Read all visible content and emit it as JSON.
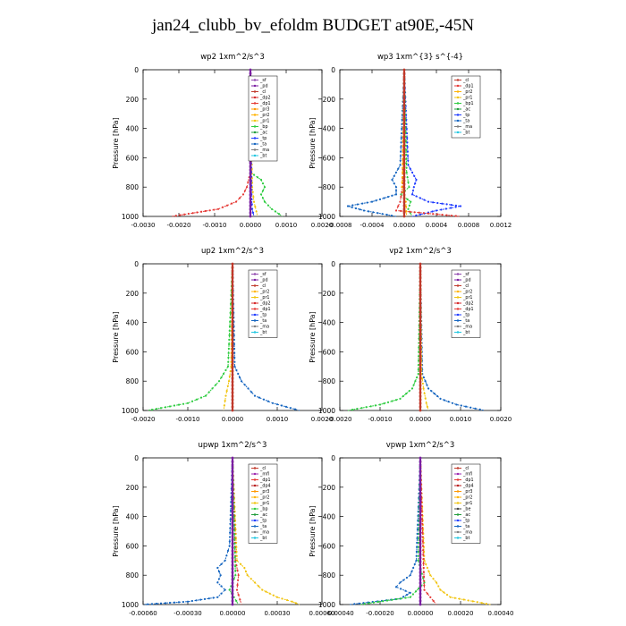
{
  "title": "jan24_clubb_bv_efoldm  BUDGET at90E,-45N",
  "colors": {
    "sf": "#8e44ad",
    "pd": "#7b1fa2",
    "cl": "#c0392b",
    "dp2": "#d62728",
    "dp1": "#e53935",
    "pr3": "#ff9800",
    "pr2": "#ffb300",
    "pr1": "#f1c40f",
    "bp": "#2ecc40",
    "ac": "#1f9c3a",
    "tp": "#1f3bff",
    "ta": "#1565c0",
    "ma": "#7f7f7f",
    "bt": "#20c6e0",
    "mfl": "#9c27b0",
    "dp4": "#b71c1c"
  },
  "chart_data": [
    {
      "type": "line",
      "title": "wp2   1xm^2/s^3",
      "ylabel": "Pressure  [hPa]",
      "xlim": [
        -0.003,
        0.002
      ],
      "ylim": [
        1000,
        0
      ],
      "xticks": [
        "-0.0030",
        "-0.0020",
        "-0.0010",
        "0.0000",
        "0.0010",
        "0.0020"
      ],
      "yticks": [
        "0",
        "200",
        "400",
        "600",
        "800",
        "1000"
      ],
      "legend": [
        "_sf",
        "_pd",
        "_cl",
        "_dp2",
        "_dp1",
        "_pr3",
        "_pr2",
        "_pr1",
        "_bp",
        "_ac",
        "_tp",
        "_ta",
        "_ma",
        "_bt"
      ],
      "series": [
        {
          "name": "_dp1",
          "color": "dp1",
          "p": [
            0,
            700,
            800,
            850,
            900,
            950,
            1000
          ],
          "x": [
            0,
            0,
            -0.0001,
            -0.0002,
            -0.0004,
            -0.0009,
            -0.0022
          ]
        },
        {
          "name": "_bp",
          "color": "bp",
          "p": [
            0,
            700,
            750,
            800,
            850,
            900,
            950,
            1000
          ],
          "x": [
            0,
            0,
            0.0003,
            0.0004,
            0.0003,
            0.0004,
            0.0006,
            0.0009
          ]
        },
        {
          "name": "_pr1",
          "color": "pr1",
          "p": [
            0,
            800,
            900,
            1000
          ],
          "x": [
            0,
            5e-05,
            0.0001,
            0.0002
          ]
        },
        {
          "name": "_tp",
          "color": "tp",
          "p": [
            0,
            850,
            950,
            1000
          ],
          "x": [
            0,
            3e-05,
            5e-05,
            0.0001
          ]
        },
        {
          "name": "_pd",
          "color": "pd",
          "p": [
            0,
            1000
          ],
          "x": [
            0,
            0
          ]
        }
      ]
    },
    {
      "type": "line",
      "title": "wp3   1xm^{3} s^{-4}",
      "ylabel": "Pressure  [hPa]",
      "xlim": [
        -0.0008,
        0.0012
      ],
      "ylim": [
        1000,
        0
      ],
      "xticks": [
        "-0.0008",
        "-0.0004",
        "0.0000",
        "0.0004",
        "0.0008",
        "0.0012"
      ],
      "yticks": [
        "0",
        "200",
        "400",
        "600",
        "800",
        "1000"
      ],
      "legend": [
        "_cl",
        "_dp1",
        "_pr2",
        "_pr1",
        "_bp1",
        "_ac",
        "_tp",
        "_ta",
        "_ma",
        "_bt"
      ],
      "series": [
        {
          "name": "_tp",
          "color": "tp",
          "p": [
            0,
            650,
            700,
            750,
            800,
            850,
            900,
            930,
            960,
            1000
          ],
          "x": [
            0,
            5e-05,
            0.0001,
            0.00015,
            0.00012,
            0.0001,
            0.0003,
            0.0007,
            0.0004,
            0.0001
          ]
        },
        {
          "name": "_ta",
          "color": "ta",
          "p": [
            0,
            650,
            700,
            750,
            800,
            850,
            900,
            930,
            960,
            1000
          ],
          "x": [
            0,
            -5e-05,
            -0.0001,
            -0.00015,
            -0.0001,
            -0.0001,
            -0.0004,
            -0.0007,
            -0.0005,
            -0.0001
          ]
        },
        {
          "name": "_bp1",
          "color": "bp",
          "p": [
            0,
            700,
            800,
            850,
            900,
            950,
            1000
          ],
          "x": [
            0,
            3e-05,
            6e-05,
            -4e-05,
            8e-05,
            5e-05,
            0.0001
          ]
        },
        {
          "name": "_dp1",
          "color": "dp1",
          "p": [
            0,
            800,
            900,
            960,
            1000
          ],
          "x": [
            0,
            -2e-05,
            -5e-05,
            -0.0001,
            0.0007
          ]
        },
        {
          "name": "_pr2",
          "color": "pr2",
          "p": [
            0,
            700,
            800,
            900,
            1000
          ],
          "x": [
            0,
            -2e-05,
            -3e-05,
            2e-05,
            3e-05
          ]
        },
        {
          "name": "_cl",
          "color": "cl",
          "p": [
            0,
            1000
          ],
          "x": [
            0,
            0
          ]
        }
      ]
    },
    {
      "type": "line",
      "title": "up2   1xm^2/s^3",
      "ylabel": "Pressure  [hPa]",
      "xlim": [
        -0.002,
        0.002
      ],
      "ylim": [
        1000,
        0
      ],
      "xticks": [
        "-0.0020",
        "-0.0010",
        "0.0000",
        "0.0010",
        "0.0020"
      ],
      "yticks": [
        "0",
        "200",
        "400",
        "600",
        "800",
        "1000"
      ],
      "legend": [
        "_sf",
        "_pd",
        "_cl",
        "_pr2",
        "_pr1",
        "_dp2",
        "_dp1",
        "_tp",
        "_ta",
        "_ma",
        "_bt"
      ],
      "series": [
        {
          "name": "_bp",
          "color": "bp",
          "p": [
            0,
            700,
            800,
            900,
            950,
            1000
          ],
          "x": [
            0,
            -0.0001,
            -0.0003,
            -0.0006,
            -0.001,
            -0.0019
          ]
        },
        {
          "name": "_ta",
          "color": "ta",
          "p": [
            0,
            700,
            800,
            900,
            950,
            1000
          ],
          "x": [
            0,
            5e-05,
            0.0002,
            0.0005,
            0.0009,
            0.0015
          ]
        },
        {
          "name": "_pr1",
          "color": "pr1",
          "p": [
            0,
            700,
            800,
            900,
            1000
          ],
          "x": [
            0,
            -3e-05,
            -8e-05,
            -0.00015,
            -0.0002
          ]
        },
        {
          "name": "_dp2",
          "color": "dp2",
          "p": [
            0,
            1000
          ],
          "x": [
            0,
            0
          ]
        }
      ]
    },
    {
      "type": "line",
      "title": "vp2   1xm^2/s^3",
      "ylabel": "Pressure  [hPa]",
      "xlim": [
        -0.002,
        0.002
      ],
      "ylim": [
        1000,
        0
      ],
      "xticks": [
        "-0.0020",
        "-0.0010",
        "0.0000",
        "0.0010",
        "0.0020"
      ],
      "yticks": [
        "0",
        "200",
        "400",
        "600",
        "800",
        "1000"
      ],
      "legend": [
        "_sf",
        "_pd",
        "_cl",
        "_pr2",
        "_pr1",
        "_dp2",
        "_dp1",
        "_tp",
        "_ta",
        "_ma",
        "_bt"
      ],
      "series": [
        {
          "name": "_bp",
          "color": "bp",
          "p": [
            0,
            750,
            850,
            920,
            960,
            1000
          ],
          "x": [
            0,
            -5e-05,
            -0.0002,
            -0.0005,
            -0.001,
            -0.0018
          ]
        },
        {
          "name": "_ta",
          "color": "ta",
          "p": [
            0,
            750,
            850,
            920,
            960,
            1000
          ],
          "x": [
            0,
            5e-05,
            0.0002,
            0.0005,
            0.0009,
            0.0016
          ]
        },
        {
          "name": "_pr1",
          "color": "pr1",
          "p": [
            0,
            750,
            850,
            950,
            1000
          ],
          "x": [
            0,
            3e-05,
            8e-05,
            0.00015,
            0.0002
          ]
        },
        {
          "name": "_dp2",
          "color": "dp2",
          "p": [
            0,
            1000
          ],
          "x": [
            0,
            0
          ]
        }
      ]
    },
    {
      "type": "line",
      "title": "upwp   1xm^2/s^3",
      "ylabel": "Pressure  [hPa]",
      "xlim": [
        -0.0006,
        0.0006
      ],
      "ylim": [
        1000,
        0
      ],
      "xticks": [
        "-0.00060",
        "-0.00030",
        "0.00000",
        "0.00030",
        "0.00060"
      ],
      "yticks": [
        "0",
        "200",
        "400",
        "600",
        "800",
        "1000"
      ],
      "legend": [
        "_cl",
        "_mfl",
        "_dp1",
        "_dp4",
        "_pr3",
        "_pr2",
        "_pr1",
        "_bp",
        "_ac",
        "_tp",
        "_ta",
        "_ma",
        "_bt"
      ],
      "series": [
        {
          "name": "_ta",
          "color": "ta",
          "p": [
            0,
            600,
            700,
            750,
            800,
            850,
            900,
            950,
            980,
            1000
          ],
          "x": [
            0,
            -2e-05,
            -5e-05,
            -0.0001,
            -8e-05,
            -0.0001,
            -5e-05,
            -0.0001,
            -0.0003,
            -0.0006
          ]
        },
        {
          "name": "_pr1",
          "color": "pr1",
          "p": [
            0,
            700,
            750,
            800,
            850,
            900,
            950,
            980,
            1000
          ],
          "x": [
            0,
            3e-05,
            8e-05,
            0.0001,
            0.00015,
            0.0002,
            0.0003,
            0.0004,
            0.00045
          ]
        },
        {
          "name": "_dp1",
          "color": "dp1",
          "p": [
            0,
            700,
            800,
            900,
            1000
          ],
          "x": [
            0,
            2e-05,
            4e-05,
            3e-05,
            6e-05
          ]
        },
        {
          "name": "_bp",
          "color": "bp",
          "p": [
            0,
            800,
            900,
            1000
          ],
          "x": [
            0,
            2e-05,
            -2e-05,
            4e-05
          ]
        },
        {
          "name": "_mfl",
          "color": "mfl",
          "p": [
            0,
            1000
          ],
          "x": [
            0,
            0
          ]
        }
      ]
    },
    {
      "type": "line",
      "title": "vpwp   1xm^2/s^3",
      "ylabel": "Pressure  [hPa]",
      "xlim": [
        -0.0004,
        0.0004
      ],
      "ylim": [
        1000,
        0
      ],
      "xticks": [
        "-0.00040",
        "-0.00020",
        "0.00000",
        "0.00020",
        "0.00040"
      ],
      "yticks": [
        "0",
        "200",
        "400",
        "600",
        "800",
        "1000"
      ],
      "legend": [
        "_cl",
        "_mfl",
        "_dp1",
        "_dp4",
        "_pr3",
        "_pr2",
        "_pr1",
        "_be",
        "_ac",
        "_tp",
        "_ta",
        "_ma",
        "_bt"
      ],
      "series": [
        {
          "name": "_ta",
          "color": "ta",
          "p": [
            0,
            700,
            800,
            850,
            880,
            920,
            960,
            1000
          ],
          "x": [
            0,
            -2e-05,
            -5e-05,
            -0.0001,
            -0.00012,
            -5e-05,
            -0.0001,
            -0.00035
          ]
        },
        {
          "name": "_pr1",
          "color": "pr1",
          "p": [
            0,
            700,
            800,
            850,
            900,
            950,
            1000
          ],
          "x": [
            0,
            2e-05,
            5e-05,
            8e-05,
            0.0001,
            0.00015,
            0.00035
          ]
        },
        {
          "name": "_be",
          "color": "bp",
          "p": [
            0,
            700,
            850,
            950,
            1000
          ],
          "x": [
            0,
            -1e-05,
            2e-05,
            -5e-05,
            -0.0003
          ]
        },
        {
          "name": "_dp1",
          "color": "dp1",
          "p": [
            0,
            900,
            1000
          ],
          "x": [
            0,
            2e-05,
            8e-05
          ]
        },
        {
          "name": "_mfl",
          "color": "mfl",
          "p": [
            0,
            1000
          ],
          "x": [
            0,
            0
          ]
        }
      ]
    }
  ]
}
